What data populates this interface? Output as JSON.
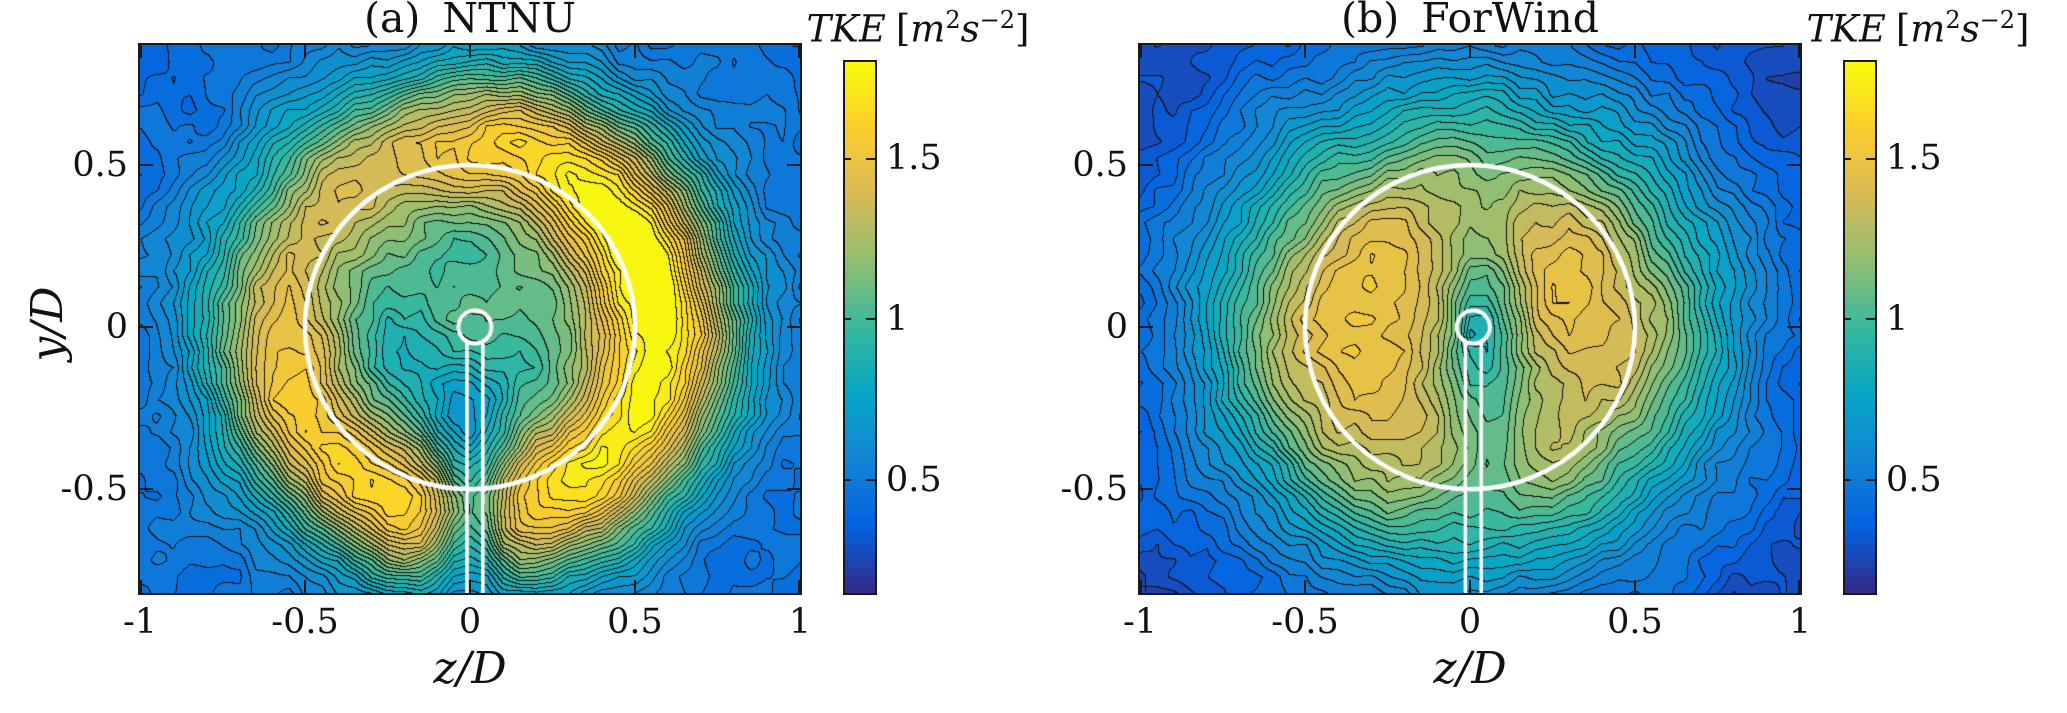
{
  "page": {
    "background": "#ffffff"
  },
  "parula_stops": [
    [
      53,
      42,
      135
    ],
    [
      3,
      99,
      225
    ],
    [
      20,
      133,
      212
    ],
    [
      6,
      167,
      198
    ],
    [
      56,
      185,
      158
    ],
    [
      146,
      191,
      115
    ],
    [
      217,
      186,
      86
    ],
    [
      252,
      206,
      46
    ],
    [
      249,
      251,
      14
    ]
  ],
  "contour_line_color": [
    18,
    18,
    18
  ],
  "overlay_color": "#ffffff",
  "chart_data": [
    {
      "type": "contour",
      "panel": "a",
      "title_tag": "(a)",
      "title_name": "NTNU",
      "xlabel": "z/D",
      "ylabel": "y/D",
      "x_range": [
        -1,
        1
      ],
      "y_range": [
        -0.82,
        0.87
      ],
      "x_ticks": [
        -1,
        -0.5,
        0,
        0.5,
        1
      ],
      "x_tick_labels": [
        "-1",
        "-0.5",
        "0",
        "0.5",
        "1"
      ],
      "y_ticks": [
        0.5,
        0,
        -0.5
      ],
      "y_tick_labels": [
        "0.5",
        "0",
        "-0.5"
      ],
      "levels": {
        "min": 0.15,
        "max": 1.8,
        "step": 0.05
      },
      "colormap": "parula",
      "grid": {
        "nx": 41,
        "ny": 35
      },
      "noise_amp": 0.038,
      "noise_seed": 3,
      "field_terms": [
        {
          "type": "const",
          "amp": 0.42
        },
        {
          "type": "gauss",
          "amp": 0.12,
          "cx": 0,
          "cy": 0,
          "sx": 0.9,
          "sy": 0.85
        },
        {
          "type": "gauss",
          "amp": 0.52,
          "cx": 0.02,
          "cy": 0.06,
          "sx": 0.3,
          "sy": 0.27
        },
        {
          "type": "ring",
          "amp": 1.12,
          "r0": 0.57,
          "sigma": 0.25,
          "az": [
            {
              "m": 1,
              "amp": 0.17,
              "phase": -0.35
            },
            {
              "m": 2,
              "amp": 0.06,
              "phase": 1.2
            }
          ]
        },
        {
          "type": "gauss",
          "amp": -0.62,
          "cx": 0.0,
          "cy": -0.55,
          "sx": 0.11,
          "sy": 0.3
        },
        {
          "type": "wave",
          "amp": 0.04,
          "kx": 9.2,
          "ky": 7.1,
          "px": 0.5,
          "py": 1.3
        },
        {
          "type": "wave",
          "amp": 0.03,
          "kx": 16.5,
          "ky": 13.7,
          "px": 2.1,
          "py": 0.4
        }
      ],
      "overlays": {
        "rotor_circle": {
          "cx": 0,
          "cy": 0,
          "r": 0.5,
          "lw": 4.5
        },
        "hub_circle": {
          "cx": 0.015,
          "cy": 0,
          "r": 0.05,
          "lw": 4
        },
        "tower": {
          "cx": 0.015,
          "half_width": 0.024,
          "y_top": -0.045,
          "lw": 3.5
        }
      },
      "colorbar": {
        "qty": "TKE",
        "open": "[",
        "m": "m",
        "m_exp": "2",
        "s": "s",
        "s_exp": "−2",
        "close": "]",
        "ticks": [
          1.5,
          1,
          0.5
        ],
        "tick_labels": [
          "1.5",
          "1",
          "0.5"
        ]
      }
    },
    {
      "type": "contour",
      "panel": "b",
      "title_tag": "(b)",
      "title_name": "ForWind",
      "xlabel": "z/D",
      "ylabel": "",
      "x_range": [
        -1,
        1
      ],
      "y_range": [
        -0.82,
        0.87
      ],
      "x_ticks": [
        -1,
        -0.5,
        0,
        0.5,
        1
      ],
      "x_tick_labels": [
        "-1",
        "-0.5",
        "0",
        "0.5",
        "1"
      ],
      "y_ticks": [
        0.5,
        0,
        -0.5
      ],
      "y_tick_labels": [
        "0.5",
        "0",
        "-0.5"
      ],
      "levels": {
        "min": 0.15,
        "max": 1.8,
        "step": 0.05
      },
      "colormap": "parula",
      "grid": {
        "nx": 41,
        "ny": 35
      },
      "noise_amp": 0.032,
      "noise_seed": 11,
      "field_terms": [
        {
          "type": "const",
          "amp": 0.25
        },
        {
          "type": "gauss",
          "amp": 0.25,
          "cx": 0,
          "cy": 0,
          "sx": 0.8,
          "sy": 0.75
        },
        {
          "type": "gauss",
          "amp": 0.3,
          "cx": 0.03,
          "cy": 0.1,
          "sx": 0.32,
          "sy": 0.3
        },
        {
          "type": "ring",
          "amp": 0.88,
          "r0": 0.4,
          "sigma": 0.42,
          "az": [
            {
              "m": 2,
              "amp": 0.1,
              "phase": 0.2
            },
            {
              "m": 1,
              "amp": 0.06,
              "phase": -2.6
            }
          ]
        },
        {
          "type": "gauss",
          "amp": -0.34,
          "cx": 0.05,
          "cy": -0.05,
          "sx": 0.12,
          "sy": 0.42
        },
        {
          "type": "wave",
          "amp": 0.034,
          "kx": 10.3,
          "ky": 8.2,
          "px": 1.7,
          "py": 0.9
        },
        {
          "type": "wave",
          "amp": 0.024,
          "kx": 17.8,
          "ky": 14.1,
          "px": 0.3,
          "py": 2.2
        }
      ],
      "overlays": {
        "rotor_circle": {
          "cx": 0,
          "cy": 0,
          "r": 0.5,
          "lw": 4.5
        },
        "hub_circle": {
          "cx": 0.01,
          "cy": 0,
          "r": 0.05,
          "lw": 4
        },
        "tower": {
          "cx": 0.01,
          "half_width": 0.024,
          "y_top": -0.045,
          "lw": 3.5
        }
      },
      "colorbar": {
        "qty": "TKE",
        "open": "[",
        "m": "m",
        "m_exp": "2",
        "s": "s",
        "s_exp": "−2",
        "close": "]",
        "ticks": [
          1.5,
          1,
          0.5
        ],
        "tick_labels": [
          "1.5",
          "1",
          "0.5"
        ]
      }
    }
  ]
}
